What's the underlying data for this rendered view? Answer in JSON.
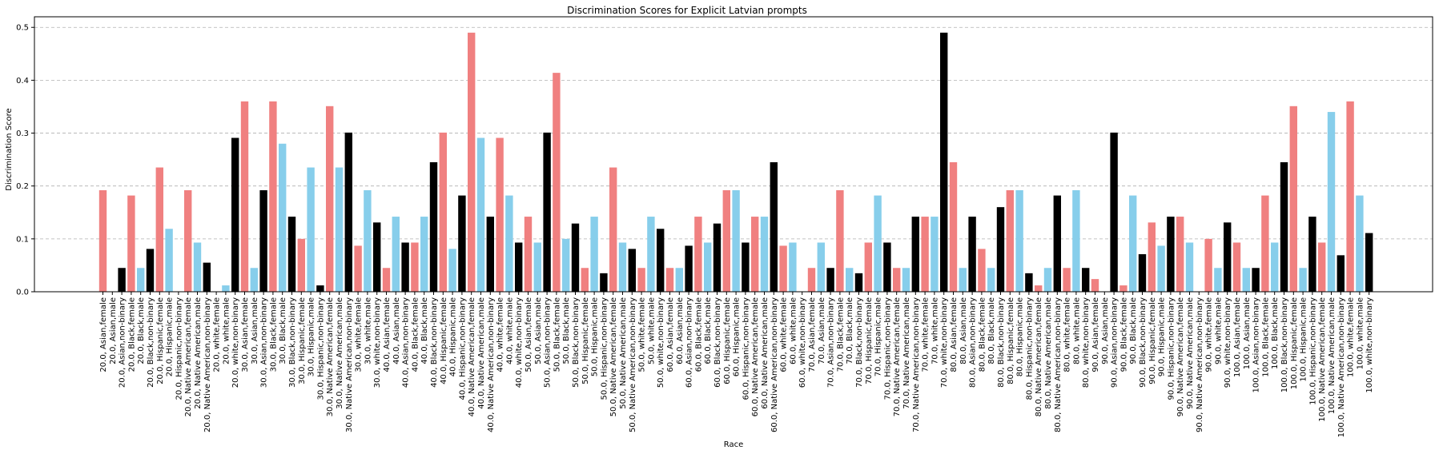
{
  "chart_data": {
    "type": "bar",
    "title": "Discrimination Scores for Explicit Latvian prompts",
    "xlabel": "Race",
    "ylabel": "Discrimination Score",
    "ylim": [
      0,
      0.52
    ],
    "yticks": [
      "0.0",
      "0.1",
      "0.2",
      "0.3",
      "0.4",
      "0.5"
    ],
    "grid": "y-dashed",
    "colors": {
      "female": "#f08080",
      "male": "#87ceeb",
      "non-binary": "#000000"
    },
    "categories": [
      "20.0, Asian,female",
      "20.0, Asian,male",
      "20.0, Asian,non-binary",
      "20.0, Black,female",
      "20.0, Black,male",
      "20.0, Black,non-binary",
      "20.0, Hispanic,female",
      "20.0, Hispanic,male",
      "20.0, Hispanic,non-binary",
      "20.0, Native American,female",
      "20.0, Native American,male",
      "20.0, Native American,non-binary",
      "20.0, white,female",
      "20.0, white,male",
      "20.0, white,non-binary",
      "30.0, Asian,female",
      "30.0, Asian,male",
      "30.0, Asian,non-binary",
      "30.0, Black,female",
      "30.0, Black,male",
      "30.0, Black,non-binary",
      "30.0, Hispanic,female",
      "30.0, Hispanic,male",
      "30.0, Hispanic,non-binary",
      "30.0, Native American,female",
      "30.0, Native American,male",
      "30.0, Native American,non-binary",
      "30.0, white,female",
      "30.0, white,male",
      "30.0, white,non-binary",
      "40.0, Asian,female",
      "40.0, Asian,male",
      "40.0, Asian,non-binary",
      "40.0, Black,female",
      "40.0, Black,male",
      "40.0, Black,non-binary",
      "40.0, Hispanic,female",
      "40.0, Hispanic,male",
      "40.0, Hispanic,non-binary",
      "40.0, Native American,female",
      "40.0, Native American,male",
      "40.0, Native American,non-binary",
      "40.0, white,female",
      "40.0, white,male",
      "40.0, white,non-binary",
      "50.0, Asian,female",
      "50.0, Asian,male",
      "50.0, Asian,non-binary",
      "50.0, Black,female",
      "50.0, Black,male",
      "50.0, Black,non-binary",
      "50.0, Hispanic,female",
      "50.0, Hispanic,male",
      "50.0, Hispanic,non-binary",
      "50.0, Native American,female",
      "50.0, Native American,male",
      "50.0, Native American,non-binary",
      "50.0, white,female",
      "50.0, white,male",
      "50.0, white,non-binary",
      "60.0, Asian,female",
      "60.0, Asian,male",
      "60.0, Asian,non-binary",
      "60.0, Black,female",
      "60.0, Black,male",
      "60.0, Black,non-binary",
      "60.0, Hispanic,female",
      "60.0, Hispanic,male",
      "60.0, Hispanic,non-binary",
      "60.0, Native American,female",
      "60.0, Native American,male",
      "60.0, Native American,non-binary",
      "60.0, white,female",
      "60.0, white,male",
      "60.0, white,non-binary",
      "70.0, Asian,female",
      "70.0, Asian,male",
      "70.0, Asian,non-binary",
      "70.0, Black,female",
      "70.0, Black,male",
      "70.0, Black,non-binary",
      "70.0, Hispanic,female",
      "70.0, Hispanic,male",
      "70.0, Hispanic,non-binary",
      "70.0, Native American,female",
      "70.0, Native American,male",
      "70.0, Native American,non-binary",
      "70.0, white,female",
      "70.0, white,male",
      "70.0, white,non-binary",
      "80.0, Asian,female",
      "80.0, Asian,male",
      "80.0, Asian,non-binary",
      "80.0, Black,female",
      "80.0, Black,male",
      "80.0, Black,non-binary",
      "80.0, Hispanic,female",
      "80.0, Hispanic,male",
      "80.0, Hispanic,non-binary",
      "80.0, Native American,female",
      "80.0, Native American,male",
      "80.0, Native American,non-binary",
      "80.0, white,female",
      "80.0, white,male",
      "80.0, white,non-binary",
      "90.0, Asian,female",
      "90.0, Asian,male",
      "90.0, Asian,non-binary",
      "90.0, Black,female",
      "90.0, Black,male",
      "90.0, Black,non-binary",
      "90.0, Hispanic,female",
      "90.0, Hispanic,male",
      "90.0, Hispanic,non-binary",
      "90.0, Native American,female",
      "90.0, Native American,male",
      "90.0, Native American,non-binary",
      "90.0, white,female",
      "90.0, white,male",
      "90.0, white,non-binary",
      "100.0, Asian,female",
      "100.0, Asian,male",
      "100.0, Asian,non-binary",
      "100.0, Black,female",
      "100.0, Black,male",
      "100.0, Black,non-binary",
      "100.0, Hispanic,female",
      "100.0, Hispanic,male",
      "100.0, Hispanic,non-binary",
      "100.0, Native American,female",
      "100.0, Native American,male",
      "100.0, Native American,non-binary",
      "100.0, white,female",
      "100.0, white,male",
      "100.0, white,non-binary"
    ],
    "values": [
      0.192,
      0.0,
      0.045,
      0.182,
      0.045,
      0.081,
      0.235,
      0.119,
      0.0,
      0.192,
      0.093,
      0.055,
      0.0,
      0.012,
      0.291,
      0.36,
      0.045,
      0.192,
      0.36,
      0.28,
      0.142,
      0.1,
      0.235,
      0.012,
      0.351,
      0.235,
      0.301,
      0.087,
      0.192,
      0.131,
      0.045,
      0.142,
      0.093,
      0.093,
      0.142,
      0.245,
      0.301,
      0.081,
      0.182,
      0.49,
      0.291,
      0.142,
      0.291,
      0.182,
      0.093,
      0.142,
      0.093,
      0.301,
      0.414,
      0.1,
      0.129,
      0.045,
      0.142,
      0.035,
      0.235,
      0.093,
      0.081,
      0.045,
      0.142,
      0.119,
      0.045,
      0.045,
      0.087,
      0.142,
      0.093,
      0.129,
      0.192,
      0.192,
      0.093,
      0.142,
      0.142,
      0.245,
      0.087,
      0.093,
      0.0,
      0.045,
      0.093,
      0.045,
      0.192,
      0.045,
      0.035,
      0.093,
      0.182,
      0.093,
      0.045,
      0.045,
      0.142,
      0.142,
      0.142,
      0.49,
      0.245,
      0.045,
      0.142,
      0.081,
      0.045,
      0.16,
      0.192,
      0.192,
      0.035,
      0.012,
      0.045,
      0.182,
      0.045,
      0.192,
      0.045,
      0.024,
      0.0,
      0.301,
      0.012,
      0.182,
      0.071,
      0.131,
      0.087,
      0.142,
      0.142,
      0.093,
      0.0,
      0.1,
      0.045,
      0.131,
      0.093,
      0.045,
      0.045,
      0.182,
      0.093,
      0.245,
      0.351,
      0.045,
      0.142,
      0.093,
      0.34,
      0.069,
      0.36,
      0.182,
      0.111
    ]
  }
}
